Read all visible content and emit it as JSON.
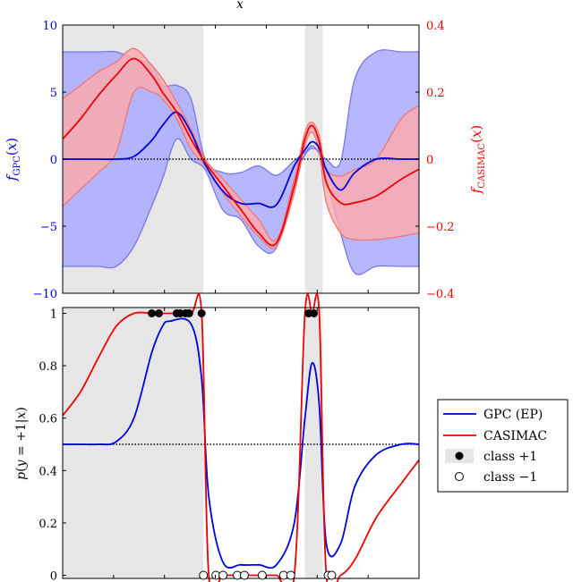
{
  "top_xlabel": "x",
  "colors": {
    "blue": "#0000dd",
    "red": "#ee0000",
    "blue_band": "#aaaaff",
    "red_band": "#ffaaaa",
    "shade": "#e6e6e6",
    "black": "#000000"
  },
  "chart_data": [
    {
      "type": "line",
      "title": "",
      "xlabel": "x",
      "ylabel": "f_GPC(x)",
      "ylabel2": "f_CASIMAC(x)",
      "xlim": [
        0,
        1
      ],
      "ylim": [
        -10,
        10
      ],
      "ylim2": [
        -0.4,
        0.4
      ],
      "left_ticks": [
        -10,
        -5,
        0,
        5,
        10
      ],
      "left_tick_labels": [
        "−10",
        "−5",
        "0",
        "5",
        "10"
      ],
      "right_ticks": [
        -0.4,
        -0.2,
        0,
        0.2,
        0.4
      ],
      "right_tick_labels": [
        "−0.4",
        "−0.2",
        "0",
        "0.2",
        "0.4"
      ],
      "shaded_regions": [
        [
          0,
          0.395
        ],
        [
          0.68,
          0.73
        ]
      ],
      "x": [
        0,
        0.05,
        0.1,
        0.15,
        0.2,
        0.25,
        0.28,
        0.32,
        0.36,
        0.4,
        0.45,
        0.5,
        0.55,
        0.6,
        0.65,
        0.68,
        0.7,
        0.72,
        0.74,
        0.78,
        0.82,
        0.88,
        0.95,
        1.0
      ],
      "series": [
        {
          "axis": "left",
          "color": "blue",
          "mean": [
            0,
            0,
            0,
            0,
            0.2,
            1.4,
            2.5,
            3.5,
            2.0,
            -0.4,
            -2.4,
            -3.3,
            -3.3,
            -3.4,
            -0.5,
            0.7,
            1.3,
            0.8,
            -0.8,
            -2.3,
            -1.0,
            0,
            0,
            0
          ],
          "upper": [
            8,
            8,
            8,
            8,
            7.5,
            7.0,
            5.5,
            5.5,
            4.5,
            0,
            -1.0,
            -1.0,
            -0.5,
            -1.2,
            -0.1,
            0.5,
            1.0,
            0.5,
            0,
            -0.2,
            6.0,
            8,
            8,
            8
          ],
          "lower": [
            -8,
            -8,
            -8,
            -8,
            -6.5,
            -3.5,
            -1.5,
            1.5,
            0,
            -0.8,
            -3.8,
            -4.5,
            -6.5,
            -6.6,
            -1.5,
            0.3,
            0.8,
            0.4,
            -1.5,
            -5.5,
            -8.5,
            -8,
            -8,
            -8
          ]
        },
        {
          "axis": "right",
          "color": "red",
          "mean": [
            0.06,
            0.12,
            0.19,
            0.25,
            0.3,
            0.25,
            0.2,
            0.14,
            0.06,
            -0.01,
            -0.08,
            -0.15,
            -0.22,
            -0.25,
            -0.08,
            0.06,
            0.1,
            0.05,
            -0.07,
            -0.13,
            -0.13,
            -0.11,
            -0.06,
            -0.03
          ],
          "upper": [
            0.18,
            0.22,
            0.26,
            0.29,
            0.33,
            0.28,
            0.24,
            0.17,
            0.09,
            0.0,
            -0.06,
            -0.12,
            -0.18,
            -0.24,
            -0.06,
            0.08,
            0.11,
            0.07,
            -0.03,
            -0.05,
            -0.03,
            0.0,
            0.12,
            0.16
          ],
          "lower": [
            -0.14,
            -0.09,
            -0.04,
            0.02,
            0.2,
            0.2,
            0.18,
            0.12,
            0.03,
            -0.02,
            -0.1,
            -0.17,
            -0.23,
            -0.26,
            -0.1,
            0.04,
            0.08,
            0.02,
            -0.13,
            -0.22,
            -0.24,
            -0.24,
            -0.23,
            -0.22
          ]
        }
      ],
      "reference_line": {
        "y": 0,
        "style": "dotted"
      }
    },
    {
      "type": "line",
      "title": "",
      "xlabel": "",
      "ylabel": "p(y = +1|x)",
      "xlim": [
        0,
        1
      ],
      "ylim": [
        0,
        1
      ],
      "ticks": [
        0,
        0.2,
        0.4,
        0.6,
        0.8,
        1
      ],
      "tick_labels": [
        "0",
        "0.2",
        "0.4",
        "0.6",
        "0.8",
        "1"
      ],
      "shaded_regions": [
        [
          0,
          0.395
        ],
        [
          0.68,
          0.73
        ]
      ],
      "x": [
        0,
        0.05,
        0.1,
        0.15,
        0.2,
        0.25,
        0.28,
        0.3,
        0.36,
        0.39,
        0.41,
        0.45,
        0.5,
        0.55,
        0.6,
        0.65,
        0.68,
        0.7,
        0.72,
        0.74,
        0.78,
        0.82,
        0.88,
        0.95,
        1.0
      ],
      "series": [
        {
          "name": "GPC (EP)",
          "color": "blue",
          "values": [
            0.5,
            0.5,
            0.5,
            0.51,
            0.6,
            0.85,
            0.95,
            0.97,
            0.96,
            0.75,
            0.3,
            0.05,
            0.04,
            0.04,
            0.04,
            0.2,
            0.6,
            0.81,
            0.65,
            0.12,
            0.12,
            0.34,
            0.46,
            0.5,
            0.5
          ]
        },
        {
          "name": "CASIMAC",
          "color": "red",
          "values": [
            0.61,
            0.7,
            0.83,
            0.95,
            1.0,
            1.0,
            1.0,
            1.0,
            1.0,
            1.0,
            0.0,
            0.0,
            0.0,
            0.0,
            0.0,
            0.0,
            1.0,
            1.0,
            1.0,
            0.0,
            0.0,
            0.06,
            0.22,
            0.35,
            0.44
          ]
        }
      ],
      "class_plus": [
        0.25,
        0.27,
        0.32,
        0.33,
        0.345,
        0.355,
        0.39,
        0.69,
        0.705
      ],
      "class_minus": [
        0.395,
        0.43,
        0.45,
        0.49,
        0.51,
        0.56,
        0.62,
        0.64,
        0.745,
        0.755
      ],
      "reference_line": {
        "y": 0.5,
        "style": "dotted"
      },
      "legend": {
        "placement": "right",
        "entries": [
          "GPC (EP)",
          "CASIMAC",
          "class +1",
          "class −1"
        ]
      }
    }
  ]
}
